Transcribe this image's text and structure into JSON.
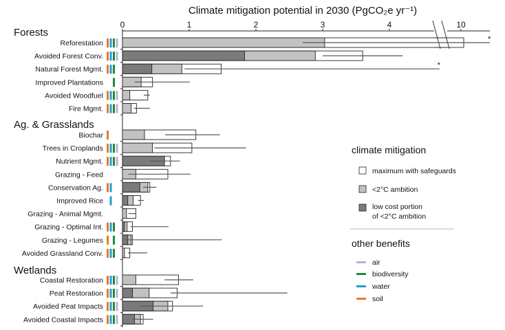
{
  "chart_data": {
    "type": "bar",
    "orientation": "horizontal",
    "stacked": true,
    "title": "Climate mitigation potential in 2030 (PgCO₂e yr⁻¹)",
    "x_ticks": [
      0,
      1,
      2,
      3,
      4,
      10
    ],
    "x_axis_break": [
      4.75,
      9.6
    ],
    "xlim": [
      0,
      11.2
    ],
    "grid": false,
    "colors": {
      "low_cost": "#7b7b7b",
      "ambition": "#c2c2c2",
      "maximum": "#ffffff",
      "air": "#b9b3d6",
      "biodiversity": "#1f8a3c",
      "water": "#1c9fd0",
      "soil": "#e8792a"
    },
    "groups": [
      {
        "name": "Forests",
        "rows": [
          {
            "label": "Reforestation",
            "low_cost": null,
            "ambition": 3.03,
            "maximum": 10.1,
            "err": [
              2.7,
              null
            ],
            "asterisk": true,
            "benefits": [
              "soil",
              "water",
              "biodiversity",
              "air"
            ]
          },
          {
            "label": "Avoided Forest Conv.",
            "low_cost": 1.83,
            "ambition": 2.89,
            "maximum": 3.6,
            "err": [
              3.0,
              4.2
            ],
            "benefits": [
              "soil",
              "water",
              "biodiversity",
              "air"
            ]
          },
          {
            "label": "Natural Forest Mgmt.",
            "low_cost": 0.44,
            "ambition": 0.89,
            "maximum": 1.48,
            "err": [
              0.93,
              4.75
            ],
            "asterisk": true,
            "benefits": [
              "soil",
              "water",
              "biodiversity"
            ]
          },
          {
            "label": "Improved Plantations",
            "low_cost": null,
            "ambition": 0.28,
            "maximum": 0.45,
            "err": [
              0.18,
              1.01
            ],
            "benefits": [
              "biodiversity"
            ]
          },
          {
            "label": "Avoided Woodfuel",
            "low_cost": null,
            "ambition": 0.11,
            "maximum": 0.38,
            "err": [
              0.32,
              0.41
            ],
            "benefits": [
              "soil",
              "water",
              "biodiversity",
              "air"
            ]
          },
          {
            "label": "Fire Mgmt.",
            "low_cost": null,
            "ambition": 0.13,
            "maximum": 0.21,
            "err": [
              0.17,
              0.41
            ],
            "benefits": [
              "soil",
              "water",
              "biodiversity",
              "air"
            ]
          }
        ]
      },
      {
        "name": "Ag. & Grasslands",
        "rows": [
          {
            "label": "Biochar",
            "low_cost": null,
            "ambition": 0.33,
            "maximum": 1.1,
            "err": [
              0.64,
              1.46
            ],
            "benefits": [
              "soil"
            ]
          },
          {
            "label": "Trees in Croplands",
            "low_cost": null,
            "ambition": 0.45,
            "maximum": 1.04,
            "err": [
              0.48,
              1.85
            ],
            "benefits": [
              "soil",
              "water",
              "biodiversity",
              "air"
            ]
          },
          {
            "label": "Nutrient Mgmt.",
            "low_cost": 0.63,
            "ambition": null,
            "maximum": 0.72,
            "err": [
              0.4,
              0.86
            ],
            "benefits": [
              "soil",
              "water",
              "biodiversity",
              "air"
            ]
          },
          {
            "label": "Grazing - Feed",
            "low_cost": null,
            "ambition": 0.2,
            "maximum": 0.68,
            "err": [
              0.09,
              1.02
            ],
            "benefits": []
          },
          {
            "label": "Conservation Ag.",
            "low_cost": 0.26,
            "ambition": 0.38,
            "maximum": 0.41,
            "err": [
              0.31,
              0.51
            ],
            "benefits": [
              "soil",
              "water"
            ]
          },
          {
            "label": "Improved Rice",
            "low_cost": 0.08,
            "ambition": 0.16,
            "maximum": 0.27,
            "err": [
              0.23,
              0.32
            ],
            "benefits": [
              "water"
            ]
          },
          {
            "label": "Grazing - Animal Mgmt.",
            "low_cost": null,
            "ambition": 0.06,
            "maximum": 0.2,
            "err": [
              0.09,
              0.2
            ],
            "benefits": []
          },
          {
            "label": "Grazing - Optimal Int.",
            "low_cost": 0.03,
            "ambition": 0.07,
            "maximum": 0.15,
            "err": [
              0.12,
              0.69
            ],
            "benefits": [
              "soil",
              "water",
              "biodiversity"
            ]
          },
          {
            "label": "Grazing - Legumes",
            "low_cost": 0.08,
            "ambition": 0.13,
            "maximum": 0.15,
            "err": [
              0.03,
              1.49
            ],
            "benefits": [
              "soil",
              "biodiversity"
            ]
          },
          {
            "label": "Avoided Grassland Conv.",
            "low_cost": null,
            "ambition": 0.03,
            "maximum": 0.11,
            "err": [
              0.08,
              0.37
            ],
            "benefits": [
              "soil",
              "water",
              "biodiversity"
            ]
          }
        ]
      },
      {
        "name": "Wetlands",
        "rows": [
          {
            "label": "Coastal Restoration",
            "low_cost": null,
            "ambition": 0.2,
            "maximum": 0.84,
            "err": [
              0.63,
              1.06
            ],
            "benefits": [
              "soil",
              "water",
              "biodiversity",
              "air"
            ]
          },
          {
            "label": "Peat Restoration",
            "low_cost": 0.15,
            "ambition": 0.4,
            "maximum": 0.82,
            "err": [
              0.72,
              2.47
            ],
            "benefits": [
              "soil",
              "water",
              "biodiversity",
              "air"
            ]
          },
          {
            "label": "Avoided Peat Impacts",
            "low_cost": 0.46,
            "ambition": 0.68,
            "maximum": 0.75,
            "err": [
              0.25,
              1.21
            ],
            "benefits": [
              "soil",
              "water",
              "biodiversity",
              "air"
            ]
          },
          {
            "label": "Avoided Coastal Impacts",
            "low_cost": 0.18,
            "ambition": 0.27,
            "maximum": 0.31,
            "err": [
              0.15,
              0.46
            ],
            "benefits": [
              "soil",
              "water",
              "biodiversity",
              "air"
            ]
          }
        ]
      }
    ],
    "asterisk_label": "*",
    "legend": {
      "mitigation_title": "climate mitigation",
      "mitigation_items": [
        {
          "key": "maximum",
          "label": "maximum with safeguards"
        },
        {
          "key": "ambition",
          "label": "<2°C ambition"
        },
        {
          "key": "low_cost",
          "label": "low cost portion",
          "label2": "of <2°C ambition"
        }
      ],
      "benefits_title": "other benefits",
      "benefit_items": [
        {
          "key": "air",
          "label": "air"
        },
        {
          "key": "biodiversity",
          "label": "biodiversity"
        },
        {
          "key": "water",
          "label": "water"
        },
        {
          "key": "soil",
          "label": "soil"
        }
      ],
      "placement": "right"
    }
  }
}
